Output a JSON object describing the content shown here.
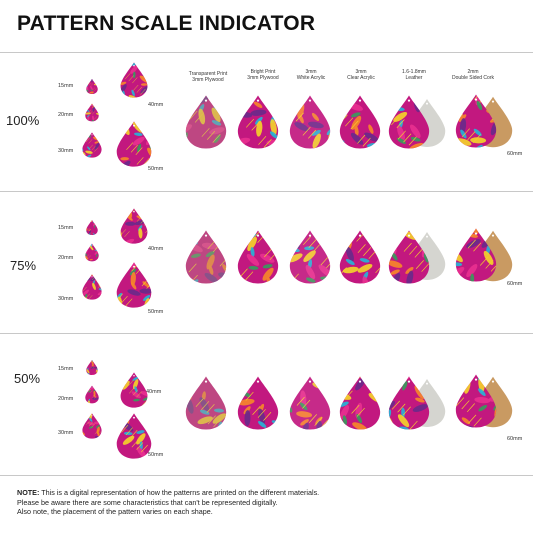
{
  "title": "PATTERN SCALE INDICATOR",
  "sections": [
    {
      "scale": "100%",
      "sizes": [
        "15mm",
        "20mm",
        "30mm",
        "40mm",
        "50mm"
      ],
      "big_label": "60mm"
    },
    {
      "scale": "75%",
      "sizes": [
        "15mm",
        "20mm",
        "30mm",
        "40mm",
        "50mm"
      ],
      "big_label": "60mm"
    },
    {
      "scale": "50%",
      "sizes": [
        "15mm",
        "20mm",
        "30mm",
        "40mm",
        "50mm"
      ],
      "big_label": "60mm"
    }
  ],
  "materials": [
    "Transparent Print\n3mm Plywood",
    "Bright Print\n3mm Plywood",
    "3mm\nWhite Acrylic",
    "3mm\nClear Acrylic",
    "1.6-1.8mm\nLeather",
    "2mm\nDouble Sided Cork"
  ],
  "note": {
    "label": "NOTE:",
    "line1": "This is a digital representation of how the patterns are printed on the different materials.",
    "line2": "Please be aware there are some characteristics that can't be represented digitally.",
    "line3": "Also note, the placement of the pattern varies on each shape."
  },
  "colors": {
    "magenta": "#c2187f",
    "pink": "#e8308f",
    "cyan": "#26b4d6",
    "orange": "#f6872a",
    "yellow": "#f4d12a",
    "leaf": "#3a9b5c",
    "purple": "#6a2a8a",
    "leather": "#d5d5d0",
    "cork": "#c99a62"
  }
}
